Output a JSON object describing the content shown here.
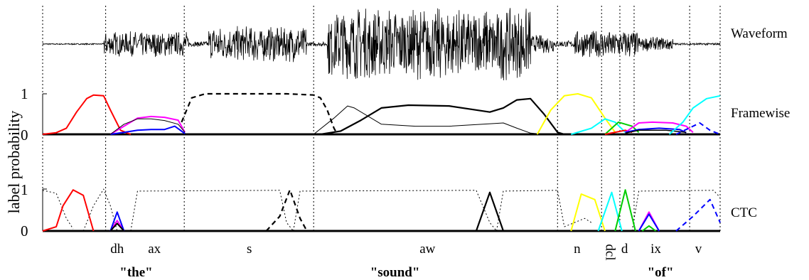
{
  "chart_data": [
    {
      "type": "line",
      "panel": "waveform",
      "row_label": "Waveform",
      "waveform_segments": [
        {
          "from": 0.0,
          "to": 0.09,
          "amp": 0.02
        },
        {
          "from": 0.09,
          "to": 0.215,
          "amp": 0.35
        },
        {
          "from": 0.215,
          "to": 0.245,
          "amp": 0.08
        },
        {
          "from": 0.245,
          "to": 0.39,
          "amp": 0.5
        },
        {
          "from": 0.39,
          "to": 0.42,
          "amp": 0.06
        },
        {
          "from": 0.42,
          "to": 0.72,
          "amp": 1.0
        },
        {
          "from": 0.72,
          "to": 0.755,
          "amp": 0.25
        },
        {
          "from": 0.755,
          "to": 0.785,
          "amp": 0.1
        },
        {
          "from": 0.785,
          "to": 0.88,
          "amp": 0.4
        },
        {
          "from": 0.88,
          "to": 0.93,
          "amp": 0.2
        },
        {
          "from": 0.93,
          "to": 1.0,
          "amp": 0.03
        }
      ]
    },
    {
      "type": "line",
      "panel": "framewise",
      "row_label": "Framewise",
      "ylim": [
        0,
        1
      ],
      "yticks": [
        "0",
        "1"
      ],
      "series": [
        {
          "color": "#ff0000",
          "points": [
            [
              0.0,
              0
            ],
            [
              0.02,
              0.04
            ],
            [
              0.035,
              0.15
            ],
            [
              0.05,
              0.55
            ],
            [
              0.065,
              0.88
            ],
            [
              0.075,
              0.97
            ],
            [
              0.09,
              0.95
            ],
            [
              0.1,
              0.6
            ],
            [
              0.115,
              0.1
            ],
            [
              0.13,
              0
            ]
          ]
        },
        {
          "color": "#ff00ff",
          "points": [
            [
              0.1,
              0
            ],
            [
              0.12,
              0.2
            ],
            [
              0.14,
              0.4
            ],
            [
              0.16,
              0.44
            ],
            [
              0.18,
              0.42
            ],
            [
              0.2,
              0.35
            ],
            [
              0.21,
              0.05
            ]
          ]
        },
        {
          "color": "#0000ff",
          "points": [
            [
              0.1,
              0
            ],
            [
              0.12,
              0.05
            ],
            [
              0.14,
              0.1
            ],
            [
              0.16,
              0.12
            ],
            [
              0.18,
              0.12
            ],
            [
              0.195,
              0.2
            ],
            [
              0.21,
              0.02
            ]
          ]
        },
        {
          "color": "#000000",
          "width": 1,
          "points": [
            [
              0.1,
              0
            ],
            [
              0.12,
              0.25
            ],
            [
              0.14,
              0.38
            ],
            [
              0.16,
              0.38
            ],
            [
              0.18,
              0.34
            ],
            [
              0.2,
              0.25
            ],
            [
              0.21,
              0.05
            ]
          ]
        },
        {
          "color": "#000000",
          "width": 2.2,
          "dash": "7,5",
          "points": [
            [
              0.205,
              0.3
            ],
            [
              0.22,
              0.9
            ],
            [
              0.24,
              1.0
            ],
            [
              0.3,
              1.0
            ],
            [
              0.36,
              1.0
            ],
            [
              0.4,
              0.97
            ],
            [
              0.41,
              0.9
            ],
            [
              0.42,
              0.6
            ],
            [
              0.43,
              0.15
            ],
            [
              0.435,
              0
            ]
          ]
        },
        {
          "color": "#000000",
          "width": 1,
          "points": [
            [
              0.4,
              0
            ],
            [
              0.43,
              0.4
            ],
            [
              0.45,
              0.7
            ],
            [
              0.46,
              0.65
            ],
            [
              0.5,
              0.25
            ],
            [
              0.55,
              0.2
            ],
            [
              0.6,
              0.2
            ],
            [
              0.65,
              0.25
            ],
            [
              0.68,
              0.28
            ],
            [
              0.7,
              0.15
            ],
            [
              0.72,
              0.03
            ],
            [
              0.74,
              0
            ]
          ]
        },
        {
          "color": "#000000",
          "width": 2.2,
          "points": [
            [
              0.41,
              0
            ],
            [
              0.44,
              0.08
            ],
            [
              0.47,
              0.35
            ],
            [
              0.5,
              0.65
            ],
            [
              0.54,
              0.72
            ],
            [
              0.6,
              0.7
            ],
            [
              0.64,
              0.6
            ],
            [
              0.66,
              0.55
            ],
            [
              0.68,
              0.65
            ],
            [
              0.7,
              0.85
            ],
            [
              0.72,
              0.88
            ],
            [
              0.74,
              0.5
            ],
            [
              0.76,
              0.05
            ],
            [
              0.77,
              0
            ]
          ]
        },
        {
          "color": "#ffff00",
          "points": [
            [
              0.73,
              0
            ],
            [
              0.75,
              0.6
            ],
            [
              0.77,
              0.95
            ],
            [
              0.79,
              1.0
            ],
            [
              0.81,
              0.9
            ],
            [
              0.83,
              0.4
            ],
            [
              0.845,
              0.05
            ]
          ]
        },
        {
          "color": "#00ffff",
          "points": [
            [
              0.78,
              0
            ],
            [
              0.81,
              0.15
            ],
            [
              0.83,
              0.38
            ],
            [
              0.845,
              0.3
            ],
            [
              0.86,
              0.05
            ]
          ]
        },
        {
          "color": "#00cc00",
          "points": [
            [
              0.83,
              0
            ],
            [
              0.85,
              0.3
            ],
            [
              0.87,
              0.2
            ],
            [
              0.88,
              0.05
            ]
          ]
        },
        {
          "color": "#ff0000",
          "points": [
            [
              0.83,
              0
            ],
            [
              0.86,
              0.1
            ],
            [
              0.87,
              0.05
            ]
          ]
        },
        {
          "color": "#ff00ff",
          "points": [
            [
              0.86,
              0.05
            ],
            [
              0.88,
              0.28
            ],
            [
              0.9,
              0.3
            ],
            [
              0.93,
              0.28
            ],
            [
              0.95,
              0.2
            ],
            [
              0.96,
              0.05
            ]
          ]
        },
        {
          "color": "#0000ff",
          "points": [
            [
              0.86,
              0.05
            ],
            [
              0.88,
              0.12
            ],
            [
              0.91,
              0.15
            ],
            [
              0.94,
              0.12
            ],
            [
              0.95,
              0.04
            ]
          ]
        },
        {
          "color": "#000000",
          "width": 1.5,
          "points": [
            [
              0.86,
              0.03
            ],
            [
              0.88,
              0.1
            ],
            [
              0.92,
              0.1
            ],
            [
              0.95,
              0.05
            ]
          ]
        },
        {
          "color": "#0000ff",
          "width": 2,
          "dash": "7,5",
          "points": [
            [
              0.935,
              0
            ],
            [
              0.95,
              0.12
            ],
            [
              0.97,
              0.28
            ],
            [
              0.985,
              0.1
            ],
            [
              1.0,
              0
            ]
          ]
        },
        {
          "color": "#00ffff",
          "points": [
            [
              0.925,
              0
            ],
            [
              0.945,
              0.3
            ],
            [
              0.96,
              0.65
            ],
            [
              0.98,
              0.88
            ],
            [
              1.0,
              0.95
            ],
            [
              1.0,
              0.95
            ]
          ]
        }
      ]
    },
    {
      "type": "line",
      "panel": "ctc",
      "row_label": "CTC",
      "ylim": [
        0,
        1
      ],
      "yticks": [
        "0",
        "1"
      ],
      "series": [
        {
          "color": "#000000",
          "width": 1,
          "dash": "2,3",
          "points": [
            [
              0.0,
              0.97
            ],
            [
              0.02,
              0.9
            ],
            [
              0.035,
              0.3
            ],
            [
              0.045,
              0.05
            ]
          ]
        },
        {
          "color": "#000000",
          "width": 1,
          "dash": "2,3",
          "points": [
            [
              0.06,
              0.0
            ],
            [
              0.075,
              0.6
            ],
            [
              0.09,
              1.0
            ],
            [
              0.1,
              0.6
            ],
            [
              0.11,
              0.0
            ]
          ]
        },
        {
          "color": "#000000",
          "width": 1,
          "dash": "2,3",
          "points": [
            [
              0.13,
              0.0
            ],
            [
              0.14,
              0.95
            ],
            [
              0.35,
              0.97
            ],
            [
              0.36,
              0.2
            ],
            [
              0.37,
              0.0
            ]
          ]
        },
        {
          "color": "#000000",
          "width": 1,
          "dash": "2,3",
          "points": [
            [
              0.37,
              0.0
            ],
            [
              0.38,
              0.95
            ],
            [
              0.64,
              0.97
            ],
            [
              0.66,
              0.2
            ],
            [
              0.67,
              0.0
            ]
          ]
        },
        {
          "color": "#000000",
          "width": 1,
          "dash": "2,3",
          "points": [
            [
              0.67,
              0.0
            ],
            [
              0.68,
              0.95
            ],
            [
              0.76,
              0.97
            ],
            [
              0.77,
              0.1
            ]
          ]
        },
        {
          "color": "#000000",
          "width": 1,
          "dash": "2,3",
          "points": [
            [
              0.77,
              0.1
            ],
            [
              0.8,
              0.3
            ],
            [
              0.81,
              0.2
            ]
          ]
        },
        {
          "color": "#000000",
          "width": 1,
          "dash": "2,3",
          "points": [
            [
              0.87,
              0.0
            ],
            [
              0.88,
              0.95
            ],
            [
              0.99,
              0.97
            ],
            [
              1.0,
              0.8
            ]
          ]
        },
        {
          "color": "#ff0000",
          "points": [
            [
              0.0,
              0
            ],
            [
              0.02,
              0.1
            ],
            [
              0.03,
              0.6
            ],
            [
              0.045,
              0.98
            ],
            [
              0.06,
              0.85
            ],
            [
              0.075,
              0.0
            ]
          ]
        },
        {
          "color": "#ff00ff",
          "points": [
            [
              0.1,
              0
            ],
            [
              0.11,
              0.25
            ],
            [
              0.12,
              0.0
            ]
          ]
        },
        {
          "color": "#0000ff",
          "points": [
            [
              0.1,
              0
            ],
            [
              0.11,
              0.45
            ],
            [
              0.12,
              0.0
            ]
          ]
        },
        {
          "color": "#000000",
          "points": [
            [
              0.1,
              0
            ],
            [
              0.11,
              0.18
            ],
            [
              0.12,
              0.0
            ]
          ]
        },
        {
          "color": "#000000",
          "width": 2.2,
          "dash": "7,5",
          "points": [
            [
              0.33,
              0
            ],
            [
              0.35,
              0.35
            ],
            [
              0.365,
              0.98
            ],
            [
              0.38,
              0.3
            ],
            [
              0.39,
              0.0
            ]
          ]
        },
        {
          "color": "#000000",
          "width": 2.2,
          "points": [
            [
              0.64,
              0
            ],
            [
              0.66,
              0.92
            ],
            [
              0.68,
              0.0
            ]
          ]
        },
        {
          "color": "#ffff00",
          "points": [
            [
              0.78,
              0.0
            ],
            [
              0.795,
              0.88
            ],
            [
              0.815,
              0.75
            ],
            [
              0.83,
              0.0
            ]
          ]
        },
        {
          "color": "#00ffff",
          "points": [
            [
              0.82,
              0.0
            ],
            [
              0.84,
              0.92
            ],
            [
              0.855,
              0.0
            ]
          ]
        },
        {
          "color": "#00cc00",
          "points": [
            [
              0.845,
              0.0
            ],
            [
              0.86,
              0.98
            ],
            [
              0.875,
              0.0
            ]
          ]
        },
        {
          "color": "#ff00ff",
          "points": [
            [
              0.88,
              0
            ],
            [
              0.895,
              0.45
            ],
            [
              0.91,
              0.0
            ]
          ]
        },
        {
          "color": "#0000ff",
          "points": [
            [
              0.88,
              0
            ],
            [
              0.895,
              0.4
            ],
            [
              0.91,
              0.0
            ]
          ]
        },
        {
          "color": "#00cc00",
          "points": [
            [
              0.885,
              0
            ],
            [
              0.895,
              0.12
            ],
            [
              0.905,
              0.0
            ]
          ]
        },
        {
          "color": "#0000ff",
          "width": 2,
          "dash": "7,5",
          "points": [
            [
              0.935,
              0.0
            ],
            [
              0.96,
              0.35
            ],
            [
              0.985,
              0.75
            ],
            [
              1.0,
              0.2
            ]
          ]
        }
      ]
    }
  ],
  "axes": {
    "ylabel": "label probability"
  },
  "phones": [
    {
      "label": "dh",
      "x": 0.11
    },
    {
      "label": "ax",
      "x": 0.165
    },
    {
      "label": "s",
      "x": 0.305
    },
    {
      "label": "aw",
      "x": 0.568
    },
    {
      "label": "n",
      "x": 0.789
    },
    {
      "label": "dcl",
      "x": 0.838,
      "vertical": true
    },
    {
      "label": "d",
      "x": 0.859
    },
    {
      "label": "ix",
      "x": 0.905
    },
    {
      "label": "v",
      "x": 0.968
    }
  ],
  "words": [
    {
      "label": "\"the\"",
      "x": 0.138
    },
    {
      "label": "\"sound\"",
      "x": 0.52
    },
    {
      "label": "\"of\"",
      "x": 0.912
    }
  ],
  "boundaries": [
    0.093,
    0.209,
    0.4,
    0.76,
    0.825,
    0.852,
    0.873,
    0.955
  ],
  "colors": {
    "grid": "#000000",
    "background": "#ffffff"
  }
}
